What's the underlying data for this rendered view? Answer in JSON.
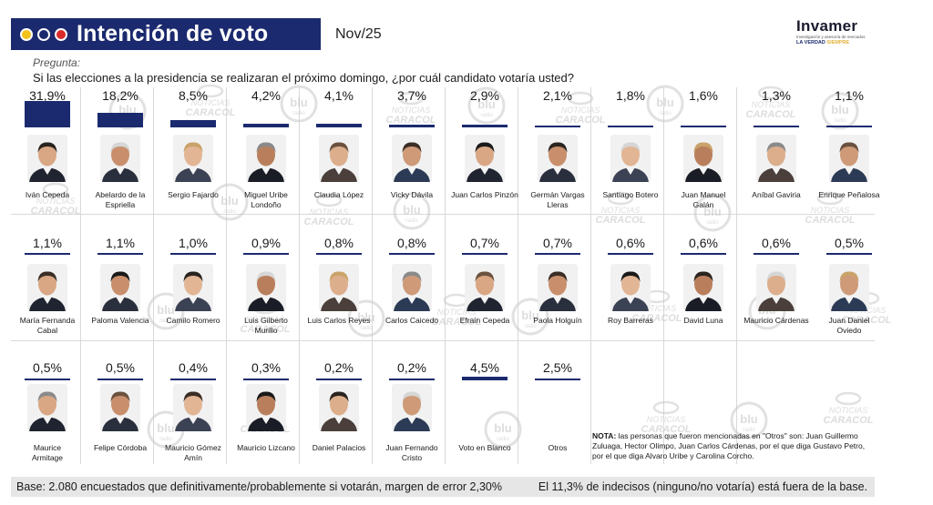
{
  "header": {
    "title": "Intención de voto",
    "date": "Nov/25",
    "dots": [
      "#f2c21b",
      "#1b2a6e",
      "#d92a2a"
    ],
    "logo_main": "Invamer",
    "logo_sub": "Investigación y asesoría de mercados",
    "logo_tag_left": "LA VERDAD",
    "logo_tag_right": "SIEMPRE"
  },
  "question": {
    "label": "Pregunta:",
    "text": "Si las elecciones a  la presidencia se realizaran el próximo domingo, ¿por cuál candidato votaría usted?"
  },
  "watermarks": {
    "blu_main": "blu",
    "blu_sub": "radio",
    "noticias": "NOTICIAS",
    "caracol": "CARACOL"
  },
  "colors": {
    "bar": "#1b2a6e",
    "accent": "#1b2a6e"
  },
  "chart_data": {
    "type": "bar",
    "title": "Intención de voto",
    "unit": "%",
    "categories": [
      "Iván Cepeda",
      "Abelardo de la Espriella",
      "Sergio Fajardo",
      "Miguel Uribe Londoño",
      "Claudia López",
      "Vicky Dávila",
      "Juan Carlos Pinzón",
      "Germán Vargas Lleras",
      "Santiago Botero",
      "Juan Manuel Galán",
      "Aníbal Gaviria",
      "Enrique Peñalosa",
      "María Fernanda Cabal",
      "Paloma Valencia",
      "Camilo Romero",
      "Luis Gilberto Murillo",
      "Luis Carlos Reyes",
      "Carlos Caicedo",
      "Efraín Cepeda",
      "Paola Holguín",
      "Roy Barreras",
      "David Luna",
      "Mauricio Cárdenas",
      "Juan Daniel Oviedo",
      "Maurice Armitage",
      "Felipe Córdoba",
      "Mauricio Gómez Amín",
      "Mauricio Lizcano",
      "Daniel Palacios",
      "Juan Fernando Cristo",
      "Voto en Blanco",
      "Otros"
    ],
    "values": [
      31.9,
      18.2,
      8.5,
      4.2,
      4.1,
      3.7,
      2.9,
      2.1,
      1.8,
      1.6,
      1.3,
      1.1,
      1.1,
      1.1,
      1.0,
      0.9,
      0.8,
      0.8,
      0.7,
      0.7,
      0.6,
      0.6,
      0.6,
      0.5,
      0.5,
      0.5,
      0.4,
      0.3,
      0.2,
      0.2,
      4.5,
      2.5
    ],
    "value_labels": [
      "31,9%",
      "18,2%",
      "8,5%",
      "4,2%",
      "4,1%",
      "3,7%",
      "2,9%",
      "2,1%",
      "1,8%",
      "1,6%",
      "1,3%",
      "1,1%",
      "1,1%",
      "1,1%",
      "1,0%",
      "0,9%",
      "0,8%",
      "0,8%",
      "0,7%",
      "0,7%",
      "0,6%",
      "0,6%",
      "0,6%",
      "0,5%",
      "0,5%",
      "0,5%",
      "0,4%",
      "0,3%",
      "0,2%",
      "0,2%",
      "4,5%",
      "2,5%"
    ],
    "name_labels": [
      [
        "Iván Cepeda"
      ],
      [
        "Abelardo de la",
        "Espriella"
      ],
      [
        "Sergio Fajardo"
      ],
      [
        "Miguel Uribe",
        "Londoño"
      ],
      [
        "Claudia López"
      ],
      [
        "Vicky Dávila"
      ],
      [
        "Juan Carlos Pinzón"
      ],
      [
        "Germán Vargas",
        "Lleras"
      ],
      [
        "Santiago Botero"
      ],
      [
        "Juan Manuel",
        "Galán"
      ],
      [
        "Aníbal Gaviria"
      ],
      [
        "Enrique Peñalosa"
      ],
      [
        "María Fernanda",
        "Cabal"
      ],
      [
        "Paloma Valencia"
      ],
      [
        "Camilo Romero"
      ],
      [
        "Luis Gilberto",
        "Murillo"
      ],
      [
        "Luis Carlos Reyes"
      ],
      [
        "Carlos Caicedo"
      ],
      [
        "Efraín Cepeda"
      ],
      [
        "Paola Holguín"
      ],
      [
        "Roy Barreras"
      ],
      [
        "David Luna"
      ],
      [
        "Mauricio Cárdenas"
      ],
      [
        "Juan Daniel",
        "Oviedo"
      ],
      [
        "Maurice",
        "Armitage"
      ],
      [
        "Felipe Córdoba"
      ],
      [
        "Mauricio Gómez",
        "Amín"
      ],
      [
        "Mauricio Lizcano"
      ],
      [
        "Daniel Palacios"
      ],
      [
        "Juan Fernando",
        "Cristo"
      ],
      [
        "Voto en Blanco"
      ],
      [
        "Otros"
      ]
    ],
    "no_photo": [
      "Voto en Blanco",
      "Otros"
    ],
    "ylim": [
      0,
      32
    ],
    "grid": false,
    "legend": "none"
  },
  "note": {
    "label": "NOTA:",
    "text": "las personas que fueron mencionadas en \"Otros\" son: Juan Guillermo Zuluaga, Hector Olimpo, Juan Carlos Cárdenas, por el que diga Gustavo Petro, por el que diga Alvaro Uribe y Carolina Corcho."
  },
  "footer": {
    "base": "Base: 2.080 encuestados que definitivamente/probablemente si votarán, margen de error 2,30%",
    "indecisos": "El 11,3% de indecisos (ninguno/no votaría) está fuera de la base."
  }
}
